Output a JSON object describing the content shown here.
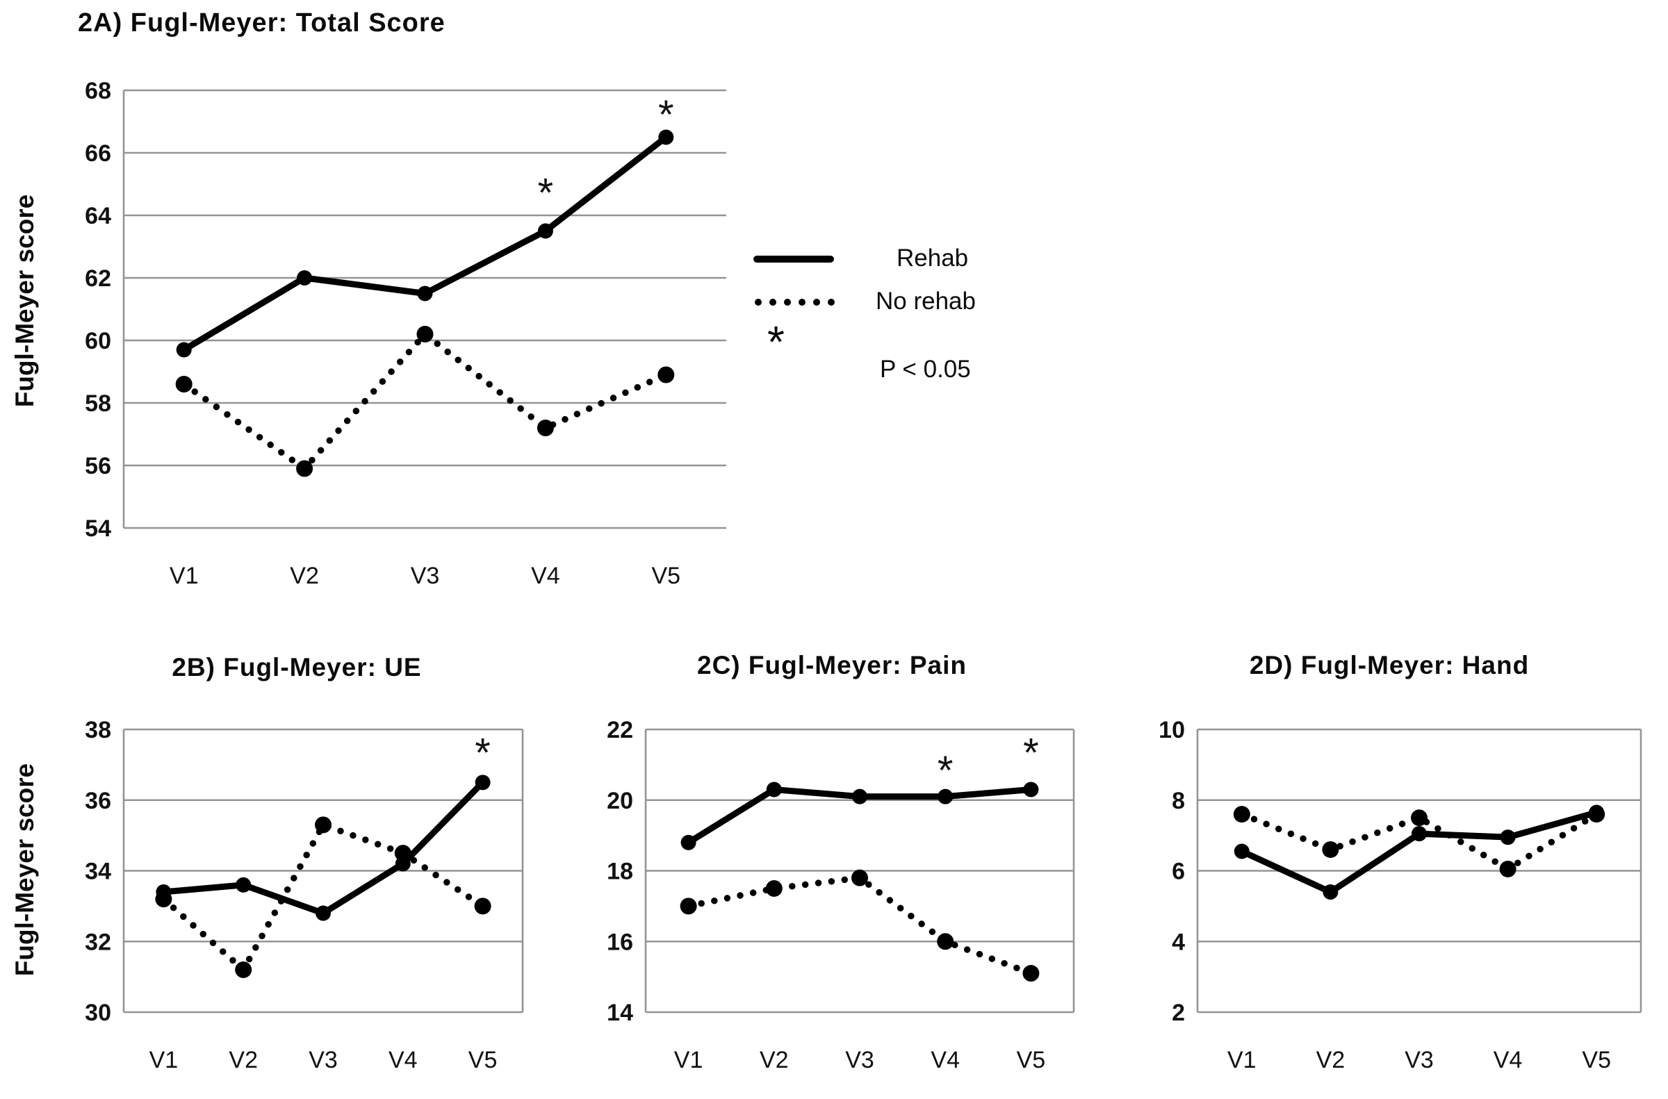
{
  "colors": {
    "line": "#000000",
    "grid": "#949494",
    "text": "#111111",
    "background": "#ffffff"
  },
  "legend": {
    "items": [
      {
        "label": "Rehab",
        "style": "solid"
      },
      {
        "label": "No rehab",
        "style": "dotted"
      }
    ],
    "significance": {
      "symbol": "*",
      "label": "P < 0.05"
    }
  },
  "chart_data": [
    {
      "type": "line",
      "title": "2A) Fugl-Meyer: Total Score",
      "ylabel": "Fugl-Meyer score",
      "xlabel": "",
      "categories": [
        "V1",
        "V2",
        "V3",
        "V4",
        "V5"
      ],
      "ylim": [
        54,
        68
      ],
      "ytick_step": 2,
      "grid": true,
      "legend_position": "right",
      "series": [
        {
          "name": "Rehab",
          "style": "solid",
          "values": [
            59.7,
            62.0,
            61.5,
            63.5,
            66.5
          ]
        },
        {
          "name": "No rehab",
          "style": "dotted",
          "values": [
            58.6,
            55.9,
            60.2,
            57.2,
            58.9
          ]
        }
      ],
      "annotations": [
        {
          "x_category": "V4",
          "y_value": 64.9,
          "label": "*"
        },
        {
          "x_category": "V5",
          "y_value": 67.4,
          "label": "*"
        }
      ]
    },
    {
      "type": "line",
      "title": "2B) Fugl-Meyer: UE",
      "ylabel": "Fugl-Meyer score",
      "xlabel": "",
      "categories": [
        "V1",
        "V2",
        "V3",
        "V4",
        "V5"
      ],
      "ylim": [
        30,
        38
      ],
      "ytick_step": 2,
      "grid": true,
      "series": [
        {
          "name": "Rehab",
          "style": "solid",
          "values": [
            33.4,
            33.6,
            32.8,
            34.2,
            36.5
          ]
        },
        {
          "name": "No rehab",
          "style": "dotted",
          "values": [
            33.2,
            31.2,
            35.3,
            34.5,
            33.0
          ]
        }
      ],
      "annotations": [
        {
          "x_category": "V5",
          "y_value": 37.5,
          "label": "*"
        }
      ]
    },
    {
      "type": "line",
      "title": "2C) Fugl-Meyer: Pain",
      "ylabel": "",
      "xlabel": "",
      "categories": [
        "V1",
        "V2",
        "V3",
        "V4",
        "V5"
      ],
      "ylim": [
        14,
        22
      ],
      "ytick_step": 2,
      "grid": true,
      "series": [
        {
          "name": "Rehab",
          "style": "solid",
          "values": [
            18.8,
            20.3,
            20.1,
            20.1,
            20.3
          ]
        },
        {
          "name": "No rehab",
          "style": "dotted",
          "values": [
            17.0,
            17.5,
            17.8,
            16.0,
            15.1
          ]
        }
      ],
      "annotations": [
        {
          "x_category": "V4",
          "y_value": 21.0,
          "label": "*"
        },
        {
          "x_category": "V5",
          "y_value": 21.5,
          "label": "*"
        }
      ]
    },
    {
      "type": "line",
      "title": "2D) Fugl-Meyer: Hand",
      "ylabel": "",
      "xlabel": "",
      "categories": [
        "V1",
        "V2",
        "V3",
        "V4",
        "V5"
      ],
      "ylim": [
        2,
        10
      ],
      "ytick_step": 2,
      "grid": true,
      "series": [
        {
          "name": "Rehab",
          "style": "solid",
          "values": [
            6.55,
            5.4,
            7.05,
            6.95,
            7.65
          ]
        },
        {
          "name": "No rehab",
          "style": "dotted",
          "values": [
            7.6,
            6.6,
            7.5,
            6.05,
            7.6
          ]
        }
      ],
      "annotations": []
    }
  ]
}
